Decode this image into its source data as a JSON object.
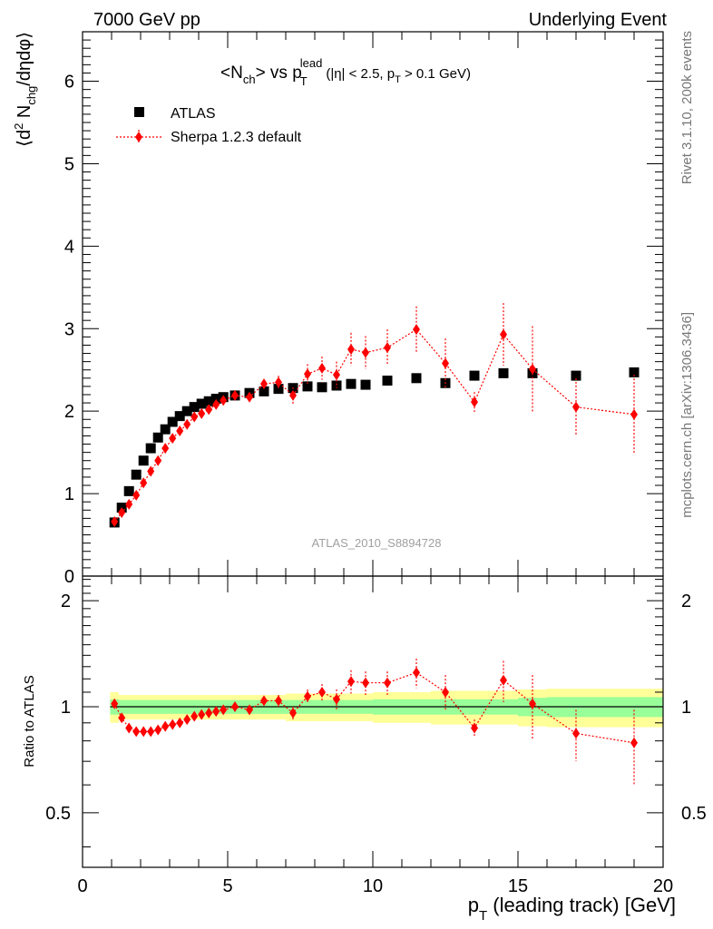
{
  "header": {
    "left": "7000 GeV pp",
    "right": "Underlying Event"
  },
  "side_labels": {
    "top": "Rivet 3.1.10,  200k events",
    "bottom": "mcplots.cern.ch [arXiv:1306.3436]"
  },
  "colors": {
    "atlas": "#000000",
    "sherpa": "#ff0000",
    "band_inner": "#99ff99",
    "band_outer": "#ffff99",
    "watermark": "#a0a0a0"
  },
  "chart_data": [
    {
      "type": "scatter",
      "title": "<N_ch> vs p_T^lead (|η| < 2.5, p_T > 0.1 GeV)",
      "title_parts": {
        "n": "<N",
        "ch": "ch",
        "vs": "> vs p",
        "T": "T",
        "lead": "lead",
        "cut1": "(|η| < 2.5, p",
        "cut_T": "T",
        "cut2": " > 0.1 GeV)"
      },
      "ylabel": "⟨d² N_chg/dηdφ⟩",
      "ylabel_parts": {
        "open": "⟨d",
        "sup2": "2",
        "n": " N",
        "chg": "chg",
        "rest": "/dηdφ⟩"
      },
      "watermark": "ATLAS_2010_S8894728",
      "xlim": [
        0,
        20
      ],
      "ylim": [
        0,
        6.6
      ],
      "yticks": [
        "0",
        "1",
        "2",
        "3",
        "4",
        "5",
        "6"
      ],
      "legend_position": "top-left",
      "series": [
        {
          "name": "ATLAS",
          "marker": "square",
          "x": [
            1.1,
            1.35,
            1.6,
            1.85,
            2.1,
            2.35,
            2.6,
            2.85,
            3.1,
            3.35,
            3.6,
            3.85,
            4.1,
            4.35,
            4.6,
            4.85,
            5.25,
            5.75,
            6.25,
            6.75,
            7.25,
            7.75,
            8.25,
            8.75,
            9.25,
            9.75,
            10.5,
            11.5,
            12.5,
            13.5,
            14.5,
            15.5,
            17.0,
            19.0
          ],
          "y": [
            0.65,
            0.83,
            1.03,
            1.23,
            1.4,
            1.55,
            1.68,
            1.78,
            1.87,
            1.94,
            2.0,
            2.05,
            2.09,
            2.12,
            2.15,
            2.17,
            2.19,
            2.22,
            2.24,
            2.27,
            2.28,
            2.3,
            2.29,
            2.31,
            2.33,
            2.32,
            2.37,
            2.4,
            2.34,
            2.43,
            2.46,
            2.46,
            2.43,
            2.47
          ]
        },
        {
          "name": "Sherpa 1.2.3 default",
          "marker": "diamond",
          "x": [
            1.1,
            1.35,
            1.6,
            1.85,
            2.1,
            2.35,
            2.6,
            2.85,
            3.1,
            3.35,
            3.6,
            3.85,
            4.1,
            4.35,
            4.6,
            4.85,
            5.25,
            5.75,
            6.25,
            6.75,
            7.25,
            7.75,
            8.25,
            8.75,
            9.25,
            9.75,
            10.5,
            11.5,
            12.5,
            13.5,
            14.5,
            15.5,
            17.0,
            19.0
          ],
          "y": [
            0.66,
            0.77,
            0.87,
            0.98,
            1.13,
            1.27,
            1.4,
            1.55,
            1.67,
            1.76,
            1.84,
            1.93,
            1.97,
            2.02,
            2.08,
            2.13,
            2.19,
            2.17,
            2.33,
            2.35,
            2.19,
            2.45,
            2.52,
            2.44,
            2.75,
            2.71,
            2.77,
            2.99,
            2.58,
            2.11,
            2.93,
            2.51,
            2.05,
            1.96
          ],
          "yerr": [
            0.02,
            0.02,
            0.02,
            0.02,
            0.02,
            0.02,
            0.02,
            0.02,
            0.02,
            0.02,
            0.02,
            0.02,
            0.02,
            0.03,
            0.03,
            0.03,
            0.04,
            0.05,
            0.06,
            0.08,
            0.1,
            0.12,
            0.14,
            0.16,
            0.2,
            0.2,
            0.22,
            0.28,
            0.3,
            0.12,
            0.38,
            0.52,
            0.35,
            0.48
          ]
        }
      ]
    },
    {
      "type": "scatter",
      "ylabel": "Ratio to ATLAS",
      "xlabel": "p_T (leading track) [GeV]",
      "xlabel_parts": {
        "p": "p",
        "T": "T",
        "rest": " (leading track) [GeV]"
      },
      "xlim": [
        0,
        20
      ],
      "ylim": [
        0.35,
        2.35
      ],
      "yscale": "log",
      "xticks": [
        "0",
        "5",
        "10",
        "15",
        "20"
      ],
      "yticks": [
        "0.5",
        "1",
        "2"
      ],
      "series": [
        {
          "name": "Sherpa 1.2.3 default",
          "x": [
            1.1,
            1.35,
            1.6,
            1.85,
            2.1,
            2.35,
            2.6,
            2.85,
            3.1,
            3.35,
            3.6,
            3.85,
            4.1,
            4.35,
            4.6,
            4.85,
            5.25,
            5.75,
            6.25,
            6.75,
            7.25,
            7.75,
            8.25,
            8.75,
            9.25,
            9.75,
            10.5,
            11.5,
            12.5,
            13.5,
            14.5,
            15.5,
            17.0,
            19.0
          ],
          "y": [
            1.02,
            0.93,
            0.87,
            0.85,
            0.85,
            0.85,
            0.86,
            0.88,
            0.89,
            0.9,
            0.92,
            0.94,
            0.95,
            0.96,
            0.97,
            0.98,
            1.0,
            0.98,
            1.04,
            1.04,
            0.96,
            1.07,
            1.1,
            1.05,
            1.18,
            1.17,
            1.17,
            1.25,
            1.1,
            0.87,
            1.19,
            1.02,
            0.84,
            0.79
          ],
          "yerr": [
            0.01,
            0.01,
            0.01,
            0.01,
            0.01,
            0.01,
            0.01,
            0.01,
            0.01,
            0.01,
            0.01,
            0.01,
            0.01,
            0.01,
            0.01,
            0.01,
            0.02,
            0.02,
            0.03,
            0.04,
            0.04,
            0.05,
            0.06,
            0.07,
            0.09,
            0.09,
            0.09,
            0.12,
            0.13,
            0.05,
            0.16,
            0.21,
            0.14,
            0.19
          ]
        },
        {
          "name": "ATLAS uncertainty band",
          "edges": [
            0.95,
            1.25,
            5.0,
            7.0,
            10.0,
            12.0,
            15.0,
            16.0,
            18.0,
            20.0
          ],
          "inner": [
            0.05,
            0.045,
            0.045,
            0.045,
            0.05,
            0.05,
            0.06,
            0.065,
            0.065
          ],
          "outer": [
            0.1,
            0.08,
            0.08,
            0.09,
            0.1,
            0.11,
            0.12,
            0.125,
            0.125
          ]
        }
      ]
    }
  ]
}
